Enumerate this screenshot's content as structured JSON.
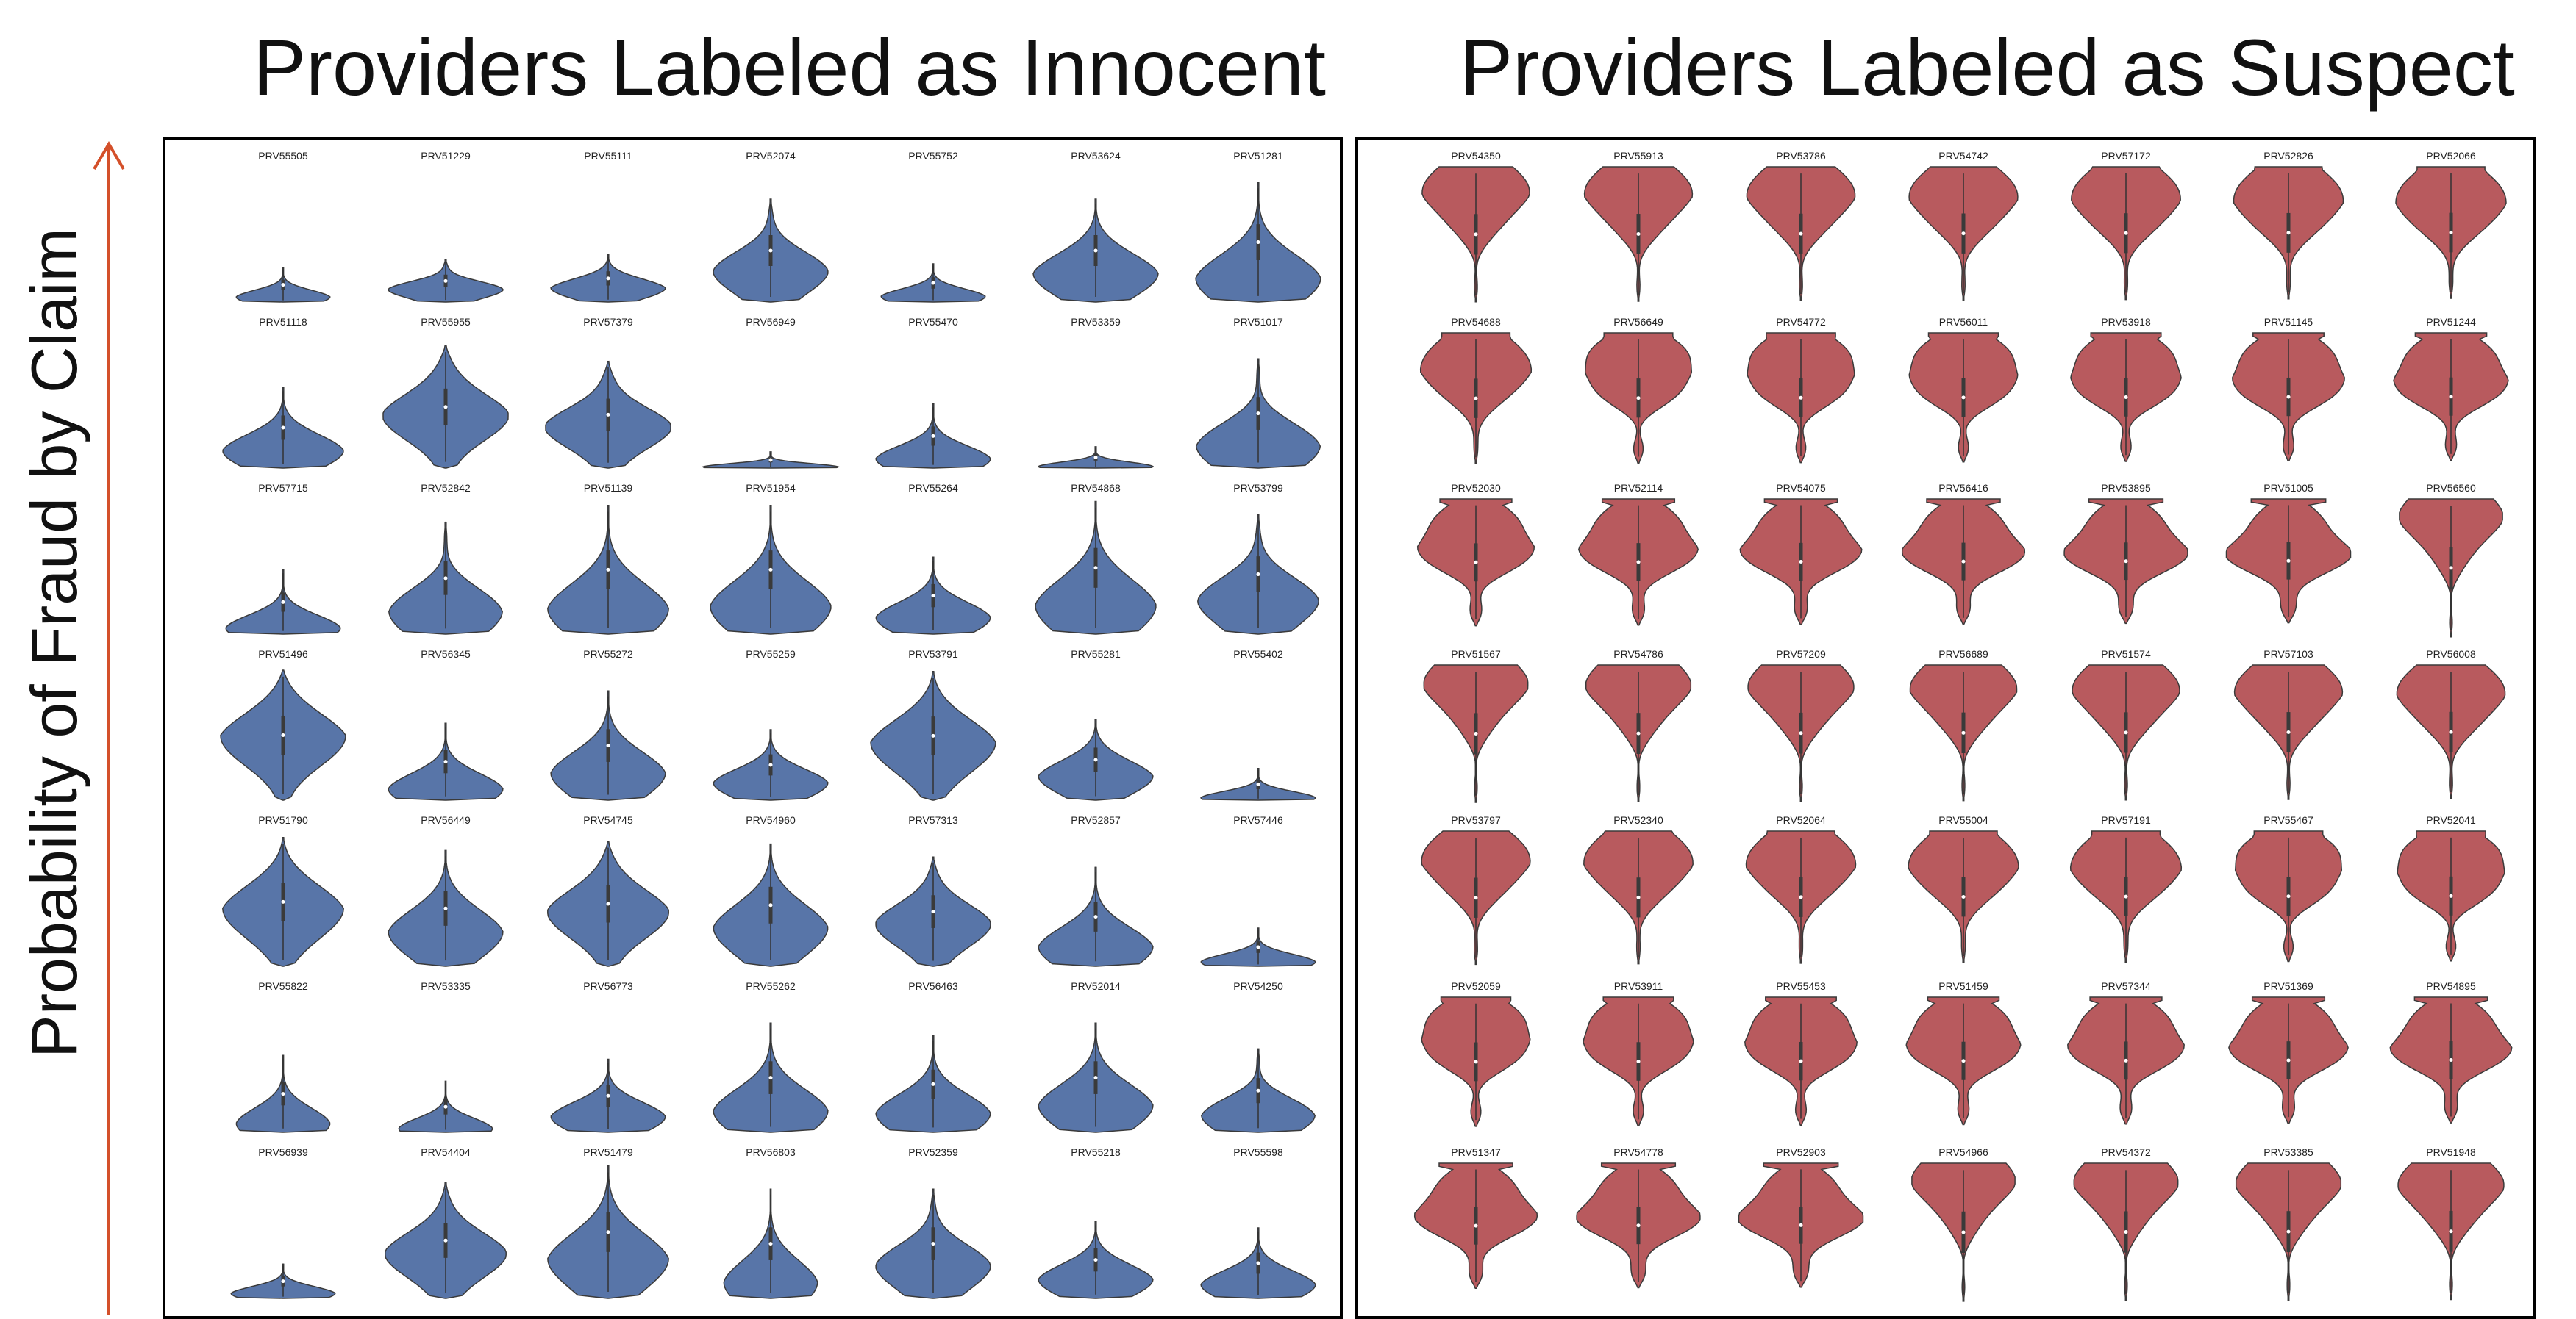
{
  "titles": {
    "left": "Providers Labeled as Innocent",
    "right": "Providers Labeled as Suspect"
  },
  "chart_data": {
    "type": "violin",
    "ylabel": "Probability of Fraud by Claim",
    "xlabel": "",
    "panels": [
      {
        "name": "Providers Labeled as Innocent",
        "color": "#5875a8",
        "providers": [
          [
            "PRV55505",
            "PRV51229",
            "PRV55111",
            "PRV52074",
            "PRV55752",
            "PRV53624",
            "PRV51281"
          ],
          [
            "PRV51118",
            "PRV55955",
            "PRV57379",
            "PRV56949",
            "PRV55470",
            "PRV53359",
            "PRV51017"
          ],
          [
            "PRV57715",
            "PRV52842",
            "PRV51139",
            "PRV51954",
            "PRV55264",
            "PRV54868",
            "PRV53799"
          ],
          [
            "PRV51496",
            "PRV56345",
            "PRV55272",
            "PRV55259",
            "PRV53791",
            "PRV55281",
            "PRV55402"
          ],
          [
            "PRV51790",
            "PRV56449",
            "PRV54745",
            "PRV54960",
            "PRV57313",
            "PRV52857",
            "PRV57446"
          ],
          [
            "PRV55822",
            "PRV53335",
            "PRV56773",
            "PRV55262",
            "PRV56463",
            "PRV52014",
            "PRV54250"
          ],
          [
            "PRV56939",
            "PRV54404",
            "PRV51479",
            "PRV56803",
            "PRV52359",
            "PRV55218",
            "PRV55598"
          ]
        ]
      },
      {
        "name": "Providers Labeled as Suspect",
        "color": "#b85a5e",
        "providers": [
          [
            "PRV54350",
            "PRV55913",
            "PRV53786",
            "PRV54742",
            "PRV57172",
            "PRV52826",
            "PRV52066"
          ],
          [
            "PRV54688",
            "PRV56649",
            "PRV54772",
            "PRV56011",
            "PRV53918",
            "PRV51145",
            "PRV51244"
          ],
          [
            "PRV52030",
            "PRV52114",
            "PRV54075",
            "PRV56416",
            "PRV53895",
            "PRV51005",
            "PRV56560"
          ],
          [
            "PRV51567",
            "PRV54786",
            "PRV57209",
            "PRV56689",
            "PRV51574",
            "PRV57103",
            "PRV56008"
          ],
          [
            "PRV53797",
            "PRV52340",
            "PRV52064",
            "PRV55004",
            "PRV57191",
            "PRV55467",
            "PRV52041"
          ],
          [
            "PRV52059",
            "PRV53911",
            "PRV55453",
            "PRV51459",
            "PRV57344",
            "PRV51369",
            "PRV54895"
          ],
          [
            "PRV51347",
            "PRV54778",
            "PRV52903",
            "PRV54966",
            "PRV54372",
            "PRV53385",
            "PRV51948"
          ]
        ]
      }
    ]
  }
}
